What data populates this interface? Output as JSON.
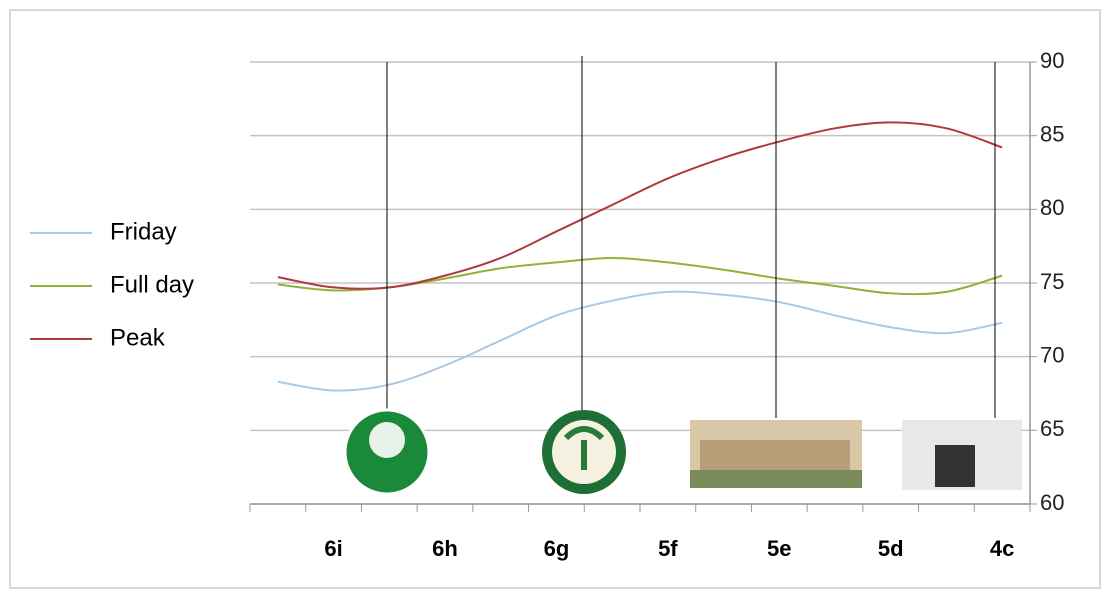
{
  "chart_data": {
    "type": "line",
    "categories": [
      null,
      "6i",
      null,
      "6h",
      null,
      "6g",
      null,
      "5f",
      null,
      "5e",
      null,
      "5d",
      null,
      "4c"
    ],
    "series": [
      {
        "name": "Friday",
        "color": "#a9c9e6",
        "values": [
          68.3,
          67.7,
          68.1,
          69.4,
          71.1,
          72.8,
          73.8,
          74.4,
          74.2,
          73.7,
          72.8,
          72.0,
          71.6,
          72.3
        ]
      },
      {
        "name": "Full day",
        "color": "#8db33a",
        "values": [
          74.9,
          74.5,
          74.7,
          75.3,
          76.0,
          76.4,
          76.7,
          76.4,
          75.9,
          75.3,
          74.8,
          74.3,
          74.4,
          75.5
        ]
      },
      {
        "name": "Peak",
        "color": "#b0393b",
        "values": [
          75.4,
          74.7,
          74.7,
          75.5,
          76.7,
          78.5,
          80.3,
          82.1,
          83.5,
          84.6,
          85.5,
          85.9,
          85.5,
          84.2
        ]
      }
    ],
    "ylim": [
      60,
      90
    ],
    "yticks": [
      60,
      65,
      70,
      75,
      80,
      85,
      90
    ],
    "grid": true,
    "legend": "left"
  }
}
